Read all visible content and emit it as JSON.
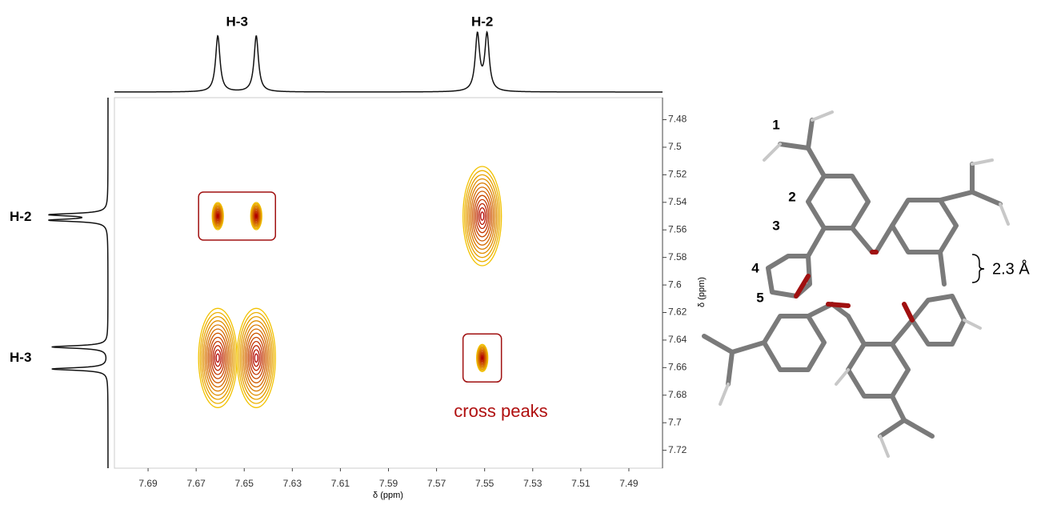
{
  "chart_data": {
    "type": "contour",
    "xlabel": "δ (ppm)",
    "ylabel": "δ (ppm)",
    "xlim": [
      7.704,
      7.476
    ],
    "ylim": [
      7.464,
      7.733
    ],
    "xticks": [
      7.69,
      7.67,
      7.65,
      7.63,
      7.61,
      7.59,
      7.57,
      7.55,
      7.53,
      7.51,
      7.49
    ],
    "yticks": [
      7.48,
      7.5,
      7.52,
      7.54,
      7.56,
      7.58,
      7.6,
      7.62,
      7.64,
      7.66,
      7.68,
      7.7,
      7.72
    ],
    "signals": [
      {
        "label": "H-3",
        "shifts": [
          7.661,
          7.645
        ]
      },
      {
        "label": "H-2",
        "shifts": [
          7.553,
          7.549
        ]
      }
    ],
    "peaks": [
      {
        "x": 7.661,
        "y": 7.653,
        "boxed": false
      },
      {
        "x": 7.645,
        "y": 7.653,
        "boxed": false
      },
      {
        "x": 7.551,
        "y": 7.55,
        "boxed": false
      },
      {
        "x": 7.661,
        "y": 7.55,
        "boxed": true
      },
      {
        "x": 7.645,
        "y": 7.55,
        "boxed": true
      },
      {
        "x": 7.551,
        "y": 7.653,
        "boxed": true
      }
    ],
    "annotation": "cross peaks",
    "colors": [
      "#f2c200",
      "#b00000"
    ]
  },
  "molecule": {
    "labels": [
      "1",
      "2",
      "3",
      "4",
      "5"
    ],
    "distance": "2.3 Å"
  }
}
